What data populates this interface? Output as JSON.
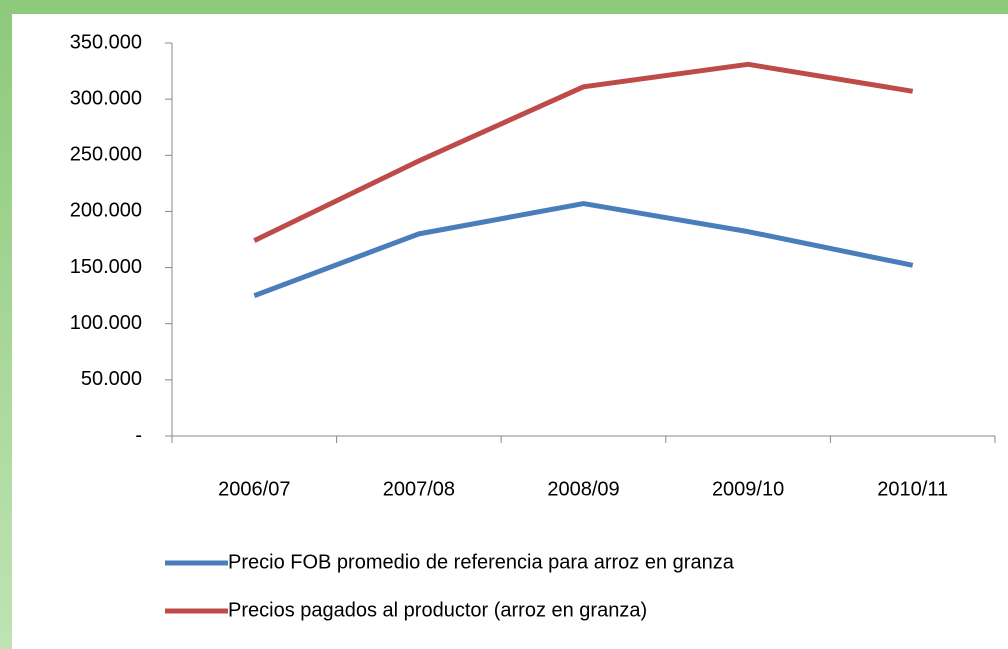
{
  "chart_data": {
    "type": "line",
    "categories": [
      "2006/07",
      "2007/08",
      "2008/09",
      "2009/10",
      "2010/11"
    ],
    "series": [
      {
        "name": "Precio FOB promedio de referencia para arroz en granza",
        "color": "#4a7ebb",
        "values": [
          125000,
          180000,
          207000,
          182000,
          152000
        ]
      },
      {
        "name": "Precios pagados al productor (arroz en granza)",
        "color": "#be4b48",
        "values": [
          174000,
          245000,
          311000,
          331000,
          307000
        ]
      }
    ],
    "ylim": [
      0,
      350000
    ],
    "yticks": [
      {
        "value": 0,
        "label": "-"
      },
      {
        "value": 50000,
        "label": "50.000"
      },
      {
        "value": 100000,
        "label": "100.000"
      },
      {
        "value": 150000,
        "label": "150.000"
      },
      {
        "value": 200000,
        "label": "200.000"
      },
      {
        "value": 250000,
        "label": "250.000"
      },
      {
        "value": 300000,
        "label": "300.000"
      },
      {
        "value": 350000,
        "label": "350.000"
      }
    ],
    "legend": "bottom"
  }
}
